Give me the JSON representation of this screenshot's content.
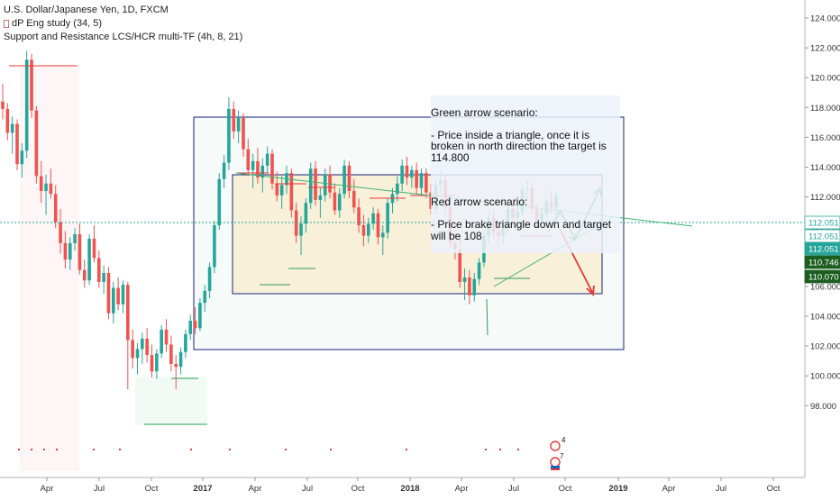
{
  "legend": {
    "symbol": "U.S. Dollar/Japanese Yen, 1D, FXCM",
    "study1": "dP Eng study (34, 5)",
    "study2": "Support and Resistance LCS/HCR multi-TF (4h, 8, 21)"
  },
  "annotation": {
    "green_title": "Green arrow scenario:",
    "green_body": "- Price inside a triangle, once it is broken in north direction the target is 114.800",
    "red_title": "Red arrow scenario:",
    "red_body": "- Price brake triangle down and target will be 108"
  },
  "colors": {
    "up_candle": "#26a69a",
    "down_candle": "#ef5350",
    "box_border": "#1a237e",
    "triangle": "#3cb371",
    "green_arrow": "#1e9e3c",
    "red_arrow": "#e53935",
    "price_tag": "#26a69a",
    "dark_tag": "#1b5e20"
  },
  "chart_data": {
    "type": "candlestick",
    "title": "U.S. Dollar/Japanese Yen, 1D, FXCM",
    "y_ticks": [
      "124.000",
      "122.000",
      "120.000",
      "118.000",
      "116.000",
      "114.000",
      "112.000",
      "110.000",
      "108.000",
      "106.000",
      "104.000",
      "102.000",
      "100.000",
      "98.000"
    ],
    "ylim": [
      97.6,
      124.6
    ],
    "x_ticks": [
      "Apr",
      "Jul",
      "Oct",
      "2017",
      "Apr",
      "Jul",
      "Oct",
      "2018",
      "Apr",
      "Jul",
      "Oct",
      "2019",
      "Apr",
      "Jul",
      "Oct"
    ],
    "price_labels": [
      {
        "text": "112.051",
        "kind": "line"
      },
      {
        "text": "112.051",
        "kind": "light"
      },
      {
        "text": "112.051",
        "kind": "green"
      },
      {
        "text": "110.746",
        "kind": "dark"
      },
      {
        "text": "110.070",
        "kind": "dark"
      }
    ],
    "current_price": 112.051,
    "green_target": 114.8,
    "red_target": 108.0,
    "ranges": [
      {
        "name": "outer range",
        "top": 118.2,
        "bottom": 104.8
      },
      {
        "name": "inner range",
        "top": 114.8,
        "bottom": 107.9
      }
    ],
    "series": [
      {
        "name": "USDJPY",
        "ohlc": [
          [
            118.4,
            119.6,
            117.2,
            117.9
          ],
          [
            117.9,
            118.3,
            115.8,
            116.3
          ],
          [
            116.3,
            117.4,
            114.9,
            116.9
          ],
          [
            116.9,
            117.2,
            113.8,
            114.2
          ],
          [
            114.2,
            115.6,
            113.3,
            115.1
          ],
          [
            115.1,
            121.8,
            114.6,
            121.2
          ],
          [
            121.2,
            121.6,
            117.3,
            117.8
          ],
          [
            117.8,
            118.1,
            112.9,
            113.4
          ],
          [
            113.4,
            114.4,
            111.6,
            112.4
          ],
          [
            112.4,
            113.5,
            110.8,
            112.9
          ],
          [
            112.9,
            113.9,
            111.9,
            112.2
          ],
          [
            112.2,
            112.8,
            109.9,
            110.3
          ],
          [
            110.3,
            111.2,
            108.2,
            108.9
          ],
          [
            108.9,
            109.7,
            107.2,
            107.8
          ],
          [
            107.8,
            109.3,
            107.1,
            108.9
          ],
          [
            108.9,
            109.9,
            108.4,
            109.5
          ],
          [
            109.5,
            110.2,
            106.8,
            107.1
          ],
          [
            107.1,
            107.8,
            105.9,
            106.4
          ],
          [
            106.4,
            109.5,
            106.1,
            109.2
          ],
          [
            109.2,
            110.1,
            107.6,
            107.9
          ],
          [
            107.9,
            108.4,
            105.9,
            106.3
          ],
          [
            106.3,
            107.4,
            105.5,
            106.9
          ],
          [
            106.9,
            107.3,
            103.8,
            104.2
          ],
          [
            104.2,
            106.3,
            103.5,
            105.9
          ],
          [
            105.9,
            106.6,
            104.4,
            104.8
          ],
          [
            104.8,
            106.4,
            104.2,
            106.1
          ],
          [
            106.1,
            106.3,
            99.1,
            102.4
          ],
          [
            102.4,
            103.1,
            100.5,
            101.2
          ],
          [
            101.2,
            102.2,
            100.1,
            101.8
          ],
          [
            101.8,
            102.9,
            100.8,
            102.5
          ],
          [
            102.5,
            103.2,
            100.9,
            101.4
          ],
          [
            101.4,
            102.1,
            99.9,
            100.3
          ],
          [
            100.3,
            101.8,
            99.8,
            101.5
          ],
          [
            101.5,
            103.4,
            101.2,
            103.1
          ],
          [
            103.1,
            103.8,
            101.6,
            102.1
          ],
          [
            102.1,
            102.7,
            100.3,
            100.8
          ],
          [
            100.8,
            101.4,
            99.1,
            100.6
          ],
          [
            100.6,
            101.9,
            100.1,
            101.6
          ],
          [
            101.6,
            103.1,
            101.2,
            102.8
          ],
          [
            102.8,
            104.1,
            102.4,
            103.7
          ],
          [
            103.7,
            104.6,
            102.8,
            103.2
          ],
          [
            103.2,
            105.2,
            103.0,
            104.9
          ],
          [
            104.9,
            106.1,
            104.3,
            105.7
          ],
          [
            105.7,
            107.6,
            105.2,
            107.3
          ],
          [
            107.3,
            110.4,
            106.9,
            110.1
          ],
          [
            110.1,
            113.6,
            109.8,
            113.2
          ],
          [
            113.2,
            114.8,
            112.6,
            114.3
          ],
          [
            114.3,
            118.7,
            113.8,
            117.9
          ],
          [
            117.9,
            118.4,
            115.9,
            116.4
          ],
          [
            116.4,
            117.8,
            115.6,
            117.3
          ],
          [
            117.3,
            117.6,
            114.7,
            115.2
          ],
          [
            115.2,
            115.9,
            113.4,
            113.8
          ],
          [
            113.8,
            114.9,
            112.6,
            114.4
          ],
          [
            114.4,
            115.3,
            112.9,
            113.3
          ],
          [
            113.3,
            114.6,
            112.3,
            114.1
          ],
          [
            114.1,
            115.4,
            113.6,
            114.9
          ],
          [
            114.9,
            115.2,
            112.5,
            112.9
          ],
          [
            112.9,
            113.7,
            111.7,
            112.1
          ],
          [
            112.1,
            113.4,
            111.2,
            112.8
          ],
          [
            112.8,
            114.1,
            112.2,
            113.6
          ],
          [
            113.6,
            113.9,
            110.6,
            111.1
          ],
          [
            111.1,
            111.6,
            108.9,
            109.4
          ],
          [
            109.4,
            110.7,
            108.1,
            110.2
          ],
          [
            110.2,
            111.9,
            109.6,
            111.6
          ],
          [
            111.6,
            114.3,
            111.2,
            113.9
          ],
          [
            113.9,
            114.4,
            111.4,
            111.8
          ],
          [
            111.8,
            112.6,
            110.6,
            112.1
          ],
          [
            112.1,
            113.9,
            111.7,
            113.5
          ],
          [
            113.5,
            114.1,
            111.9,
            112.3
          ],
          [
            112.3,
            112.9,
            110.8,
            111.1
          ],
          [
            111.1,
            112.6,
            110.6,
            112.2
          ],
          [
            112.2,
            114.5,
            111.9,
            114.1
          ],
          [
            114.1,
            114.4,
            111.9,
            112.4
          ],
          [
            112.4,
            113.2,
            110.9,
            111.3
          ],
          [
            111.3,
            111.9,
            109.6,
            110.1
          ],
          [
            110.1,
            110.8,
            108.7,
            109.4
          ],
          [
            109.4,
            110.6,
            108.9,
            110.2
          ],
          [
            110.2,
            111.3,
            109.8,
            110.9
          ],
          [
            110.9,
            111.2,
            108.8,
            109.3
          ],
          [
            109.3,
            110.1,
            108.1,
            109.6
          ],
          [
            109.6,
            111.9,
            109.2,
            111.6
          ],
          [
            111.6,
            112.6,
            110.9,
            112.2
          ],
          [
            112.2,
            113.4,
            111.7,
            112.9
          ],
          [
            112.9,
            114.5,
            112.4,
            114.1
          ],
          [
            114.1,
            114.7,
            112.8,
            113.3
          ],
          [
            113.3,
            114.1,
            112.6,
            113.8
          ],
          [
            113.8,
            114.3,
            112.2,
            112.6
          ],
          [
            112.6,
            113.9,
            112.1,
            113.6
          ],
          [
            113.6,
            113.9,
            111.9,
            112.3
          ],
          [
            112.3,
            112.9,
            110.8,
            111.2
          ],
          [
            111.2,
            113.1,
            110.9,
            112.8
          ],
          [
            112.8,
            113.8,
            112.2,
            113.1
          ],
          [
            113.1,
            113.4,
            110.9,
            111.3
          ],
          [
            111.3,
            112.1,
            108.6,
            108.9
          ],
          [
            108.9,
            110.2,
            107.8,
            108.5
          ],
          [
            108.5,
            109.4,
            105.9,
            106.3
          ],
          [
            106.3,
            107.2,
            105.1,
            106.6
          ],
          [
            106.6,
            107.1,
            104.8,
            105.4
          ],
          [
            105.4,
            106.9,
            105.0,
            106.5
          ],
          [
            106.5,
            107.9,
            106.1,
            107.6
          ],
          [
            107.6,
            109.8,
            107.3,
            109.4
          ],
          [
            109.4,
            110.9,
            108.9,
            110.6
          ],
          [
            110.6,
            111.2,
            109.2,
            109.7
          ],
          [
            109.7,
            110.1,
            108.6,
            109.4
          ],
          [
            109.4,
            110.3,
            108.8,
            109.9
          ],
          [
            109.9,
            111.5,
            109.6,
            111.2
          ],
          [
            111.2,
            111.6,
            110.1,
            110.6
          ],
          [
            110.6,
            111.4,
            110.2,
            111.0
          ],
          [
            111.0,
            112.8,
            110.7,
            112.5
          ],
          [
            112.5,
            113.1,
            111.9,
            112.6
          ],
          [
            112.6,
            113.0,
            110.8,
            111.2
          ],
          [
            111.2,
            111.6,
            109.9,
            110.4
          ],
          [
            110.4,
            111.2,
            110.1,
            110.9
          ],
          [
            110.9,
            111.9,
            110.6,
            111.7
          ],
          [
            111.7,
            112.4,
            110.9,
            111.3
          ],
          [
            111.3,
            112.3,
            111.0,
            112.1
          ]
        ]
      }
    ]
  }
}
